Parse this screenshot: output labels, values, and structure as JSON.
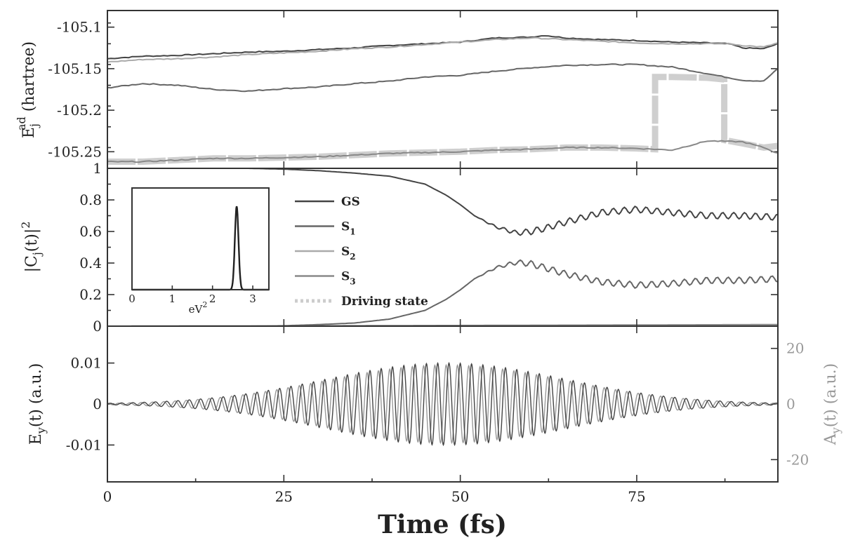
{
  "chart_data": [
    {
      "type": "line",
      "panel": "top",
      "ylabel_main": "E",
      "ylabel_sup": "ad",
      "ylabel_sub": "j",
      "ylabel_rest": " (hartree)",
      "ylim": [
        -105.27,
        -105.08
      ],
      "xlim": [
        0,
        95
      ],
      "yticks": [
        -105.1,
        -105.15,
        -105.2,
        -105.25
      ],
      "ytick_labels": [
        "-105.1",
        "-105.15",
        "-105.2",
        "-105.25"
      ],
      "series": [
        {
          "color": "#444444",
          "x": [
            0,
            5,
            10,
            15,
            20,
            25,
            30,
            35,
            40,
            45,
            50,
            55,
            60,
            62,
            65,
            70,
            75,
            80,
            85,
            88,
            90,
            93,
            95
          ],
          "y": [
            -105.138,
            -105.135,
            -105.134,
            -105.132,
            -105.13,
            -105.129,
            -105.127,
            -105.125,
            -105.122,
            -105.12,
            -105.118,
            -105.113,
            -105.112,
            -105.11,
            -105.113,
            -105.115,
            -105.116,
            -105.118,
            -105.119,
            -105.12,
            -105.125,
            -105.126,
            -105.12
          ]
        },
        {
          "color": "#666666",
          "x": [
            0,
            5,
            10,
            15,
            20,
            25,
            30,
            35,
            40,
            45,
            50,
            55,
            60,
            65,
            70,
            75,
            80,
            85,
            90,
            93,
            95
          ],
          "y": [
            -105.173,
            -105.168,
            -105.17,
            -105.175,
            -105.177,
            -105.174,
            -105.172,
            -105.168,
            -105.165,
            -105.16,
            -105.158,
            -105.153,
            -105.149,
            -105.146,
            -105.145,
            -105.145,
            -105.148,
            -105.156,
            -105.164,
            -105.165,
            -105.15
          ]
        },
        {
          "color": "#aaaaaa",
          "x": [
            0,
            5,
            10,
            15,
            20,
            25,
            30,
            35,
            40,
            45,
            50,
            55,
            60,
            65,
            70,
            75,
            80,
            85,
            88,
            90,
            93,
            95
          ],
          "y": [
            -105.142,
            -105.139,
            -105.138,
            -105.136,
            -105.133,
            -105.131,
            -105.129,
            -105.126,
            -105.124,
            -105.121,
            -105.118,
            -105.115,
            -105.113,
            -105.115,
            -105.117,
            -105.119,
            -105.12,
            -105.12,
            -105.12,
            -105.122,
            -105.124,
            -105.119
          ]
        },
        {
          "color": "#888888",
          "x": [
            0,
            5,
            10,
            15,
            20,
            25,
            30,
            35,
            40,
            45,
            50,
            55,
            60,
            65,
            70,
            75,
            80,
            85,
            90,
            93,
            95
          ],
          "y": [
            -105.262,
            -105.262,
            -105.26,
            -105.258,
            -105.258,
            -105.257,
            -105.256,
            -105.254,
            -105.252,
            -105.251,
            -105.25,
            -105.248,
            -105.247,
            -105.245,
            -105.245,
            -105.246,
            -105.248,
            -105.237,
            -105.238,
            -105.245,
            -105.252
          ]
        }
      ],
      "driving_state": {
        "color": "#cfcfcf",
        "x": [
          0,
          5,
          10,
          15,
          20,
          25,
          30,
          35,
          40,
          45,
          50,
          55,
          60,
          65,
          70,
          75,
          77.6,
          77.6,
          80,
          85,
          87.4,
          87.4,
          90,
          93,
          95
        ],
        "y": [
          -105.262,
          -105.262,
          -105.26,
          -105.258,
          -105.258,
          -105.257,
          -105.256,
          -105.254,
          -105.252,
          -105.251,
          -105.25,
          -105.248,
          -105.247,
          -105.245,
          -105.245,
          -105.246,
          -105.247,
          -105.16,
          -105.16,
          -105.161,
          -105.163,
          -105.236,
          -105.24,
          -105.245,
          -105.243
        ]
      }
    },
    {
      "type": "line",
      "panel": "middle",
      "ylabel": "|C_j(t)|^2",
      "ylabel_main": "|C",
      "ylabel_sub": "j",
      "ylabel_rest": "(t)|",
      "ylabel_sup": "2",
      "ylim": [
        0,
        1
      ],
      "xlim": [
        0,
        95
      ],
      "yticks": [
        0,
        0.2,
        0.4,
        0.6,
        0.8,
        1
      ],
      "ytick_labels": [
        "0",
        "0.2",
        "0.4",
        "0.6",
        "0.8",
        "1"
      ],
      "legend": {
        "placement": "center-left",
        "entries": [
          {
            "label": "GS",
            "sub": "",
            "color": "#444444",
            "style": "solid"
          },
          {
            "label": "S",
            "sub": "1",
            "color": "#666666",
            "style": "solid"
          },
          {
            "label": "S",
            "sub": "2",
            "color": "#aaaaaa",
            "style": "solid"
          },
          {
            "label": "S",
            "sub": "3",
            "color": "#888888",
            "style": "solid"
          },
          {
            "label": "Driving state",
            "sub": "",
            "color": "#cccccc",
            "style": "dotted"
          }
        ]
      },
      "series": [
        {
          "color": "#444444",
          "x": [
            0,
            10,
            20,
            25,
            30,
            35,
            40,
            45,
            48,
            50,
            52,
            55,
            58,
            60,
            62,
            65,
            70,
            75,
            80,
            85,
            90,
            95
          ],
          "y": [
            1.0,
            1.0,
            1.0,
            0.995,
            0.985,
            0.97,
            0.95,
            0.9,
            0.83,
            0.77,
            0.7,
            0.63,
            0.59,
            0.6,
            0.62,
            0.66,
            0.72,
            0.74,
            0.72,
            0.7,
            0.7,
            0.69
          ]
        },
        {
          "color": "#666666",
          "x": [
            0,
            10,
            20,
            25,
            30,
            35,
            40,
            45,
            48,
            50,
            52,
            55,
            58,
            60,
            62,
            65,
            70,
            75,
            80,
            85,
            90,
            95
          ],
          "y": [
            0.0,
            0.0,
            0.0,
            0.003,
            0.01,
            0.02,
            0.045,
            0.1,
            0.17,
            0.23,
            0.3,
            0.37,
            0.405,
            0.395,
            0.37,
            0.33,
            0.28,
            0.26,
            0.27,
            0.29,
            0.29,
            0.3
          ]
        },
        {
          "color": "#aaaaaa",
          "x": [
            0,
            30,
            60,
            95
          ],
          "y": [
            0.0,
            0.002,
            0.004,
            0.006
          ]
        },
        {
          "color": "#888888",
          "x": [
            0,
            30,
            60,
            95
          ],
          "y": [
            0.0,
            0.002,
            0.006,
            0.01
          ]
        }
      ],
      "inset": {
        "type": "line",
        "xlabel": "eV",
        "xlabel_sup": "2",
        "xlim": [
          0,
          3.4
        ],
        "ylim": [
          0,
          1.0
        ],
        "xticks": [
          0,
          1,
          2,
          3
        ],
        "xtick_labels": [
          "0",
          "1",
          "2",
          "3"
        ],
        "x": [
          0,
          2.4,
          2.5,
          2.55,
          2.6,
          2.65,
          2.7,
          2.8,
          3.4
        ],
        "y": [
          0,
          0,
          0.05,
          0.5,
          0.8,
          0.5,
          0.05,
          0,
          0
        ]
      }
    },
    {
      "type": "line",
      "panel": "bottom",
      "ylabel_main": "E",
      "ylabel_sub": "y",
      "ylabel_rest": "(t) (a.u.)",
      "ylabel_right_main": "A",
      "ylabel_right_sub": "y",
      "ylabel_right_rest": "(t) (a.u.)",
      "xlabel": "Time (fs)",
      "xlim": [
        0,
        95
      ],
      "ylim": [
        -0.019,
        0.019
      ],
      "y2lim": [
        -28,
        28
      ],
      "yticks": [
        -0.01,
        0,
        0.01
      ],
      "ytick_labels": [
        "-0.01",
        "0",
        "0.01"
      ],
      "y2ticks": [
        -20,
        0,
        20
      ],
      "y2tick_labels": [
        "-20",
        "0",
        "20"
      ],
      "xticks": [
        0,
        25,
        50,
        75
      ],
      "xtick_labels": [
        "0",
        "25",
        "50",
        "75"
      ],
      "pulse": {
        "center_fs": 48,
        "width_fs": 17,
        "efield_amplitude": 0.01,
        "vector_amplitude": 14,
        "period_fs": 1.6,
        "field_color": "#444444",
        "vector_color": "#9a9a9a"
      }
    }
  ]
}
